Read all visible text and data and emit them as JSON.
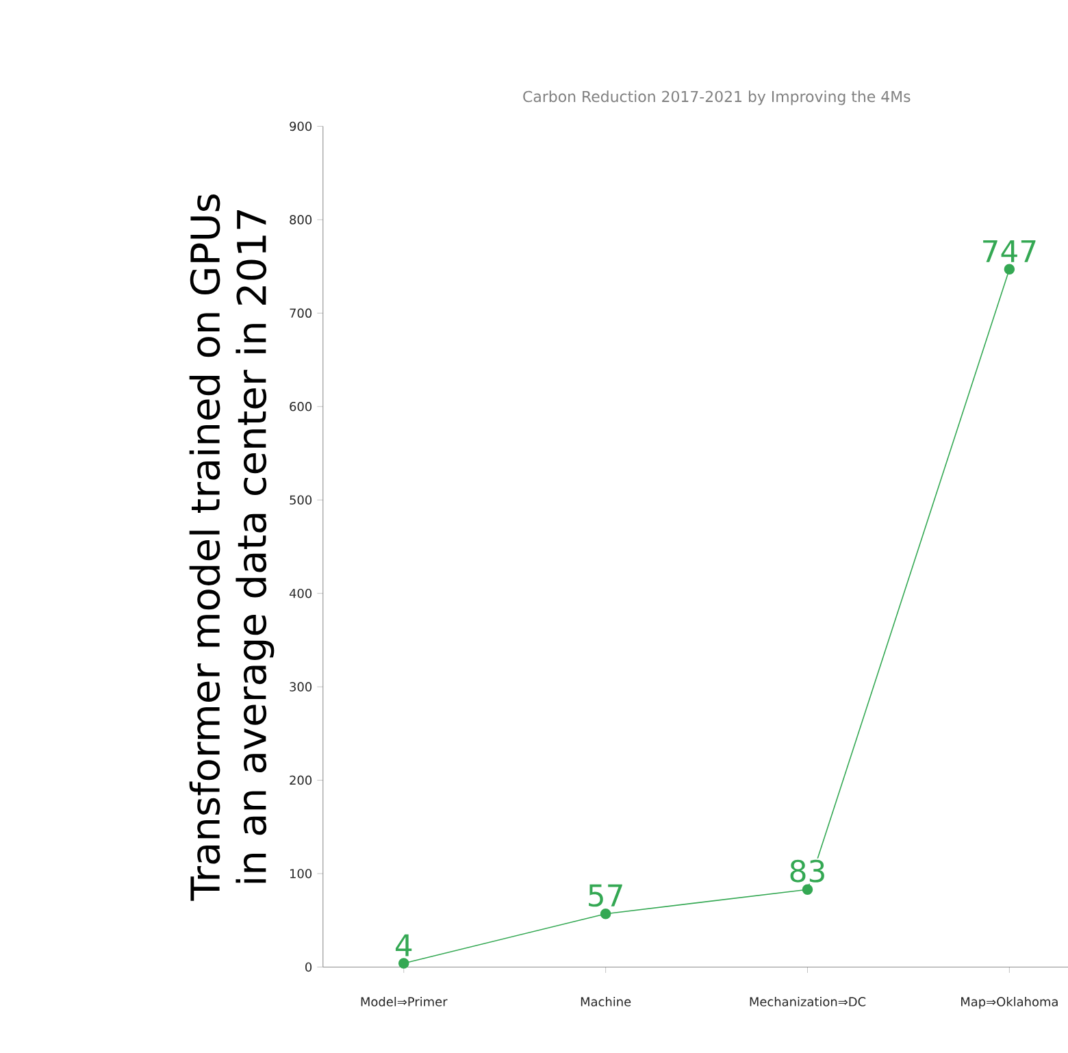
{
  "chart_data": {
    "type": "line",
    "title": "Carbon Reduction 2017-2021 by Improving the 4Ms",
    "ylabel": "Transformer model trained on GPUs in an average data center in 2017",
    "categories": [
      "Model⇒Primer",
      "Machine",
      "Mechanization⇒DC",
      "Map⇒Oklahoma"
    ],
    "values": [
      4,
      57,
      83,
      747
    ],
    "color": "#34a853",
    "marker": "circle",
    "data_labels": true,
    "ylim": [
      0,
      900
    ],
    "yticks": [
      0,
      100,
      200,
      300,
      400,
      500,
      600,
      700,
      800,
      900
    ]
  }
}
